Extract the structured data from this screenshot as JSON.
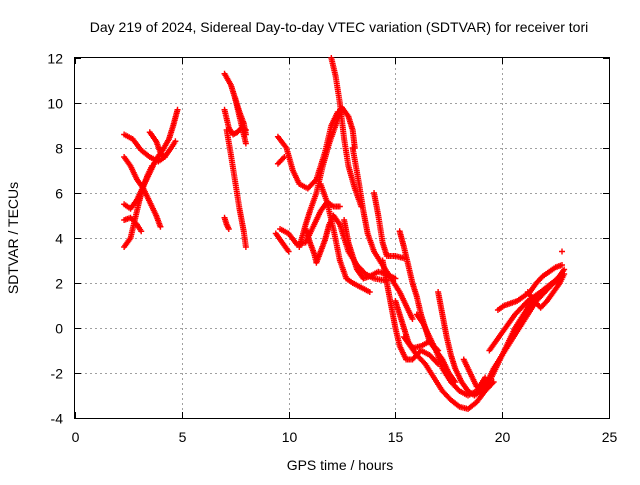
{
  "chart_data": {
    "type": "scatter",
    "title": "Day 219 of 2024, Sidereal Day-to-day VTEC variation (SDTVAR) for receiver tori",
    "xlabel": "GPS time / hours",
    "ylabel": "SDTVAR / TECUs",
    "xlim": [
      0,
      25
    ],
    "ylim": [
      -4,
      12
    ],
    "xticks": [
      "0",
      "5",
      "10",
      "15",
      "20",
      "25"
    ],
    "yticks": [
      "-4",
      "-2",
      "0",
      "2",
      "4",
      "6",
      "8",
      "10",
      "12"
    ],
    "grid": true,
    "marker": "+",
    "color": "#ff0000",
    "series": [
      {
        "points": [
          [
            2.3,
            8.6
          ],
          [
            2.7,
            8.4
          ],
          [
            3.1,
            7.9
          ],
          [
            3.5,
            7.6
          ],
          [
            3.9,
            7.4
          ],
          [
            4.2,
            7.6
          ],
          [
            4.5,
            8.0
          ],
          [
            4.7,
            8.3
          ]
        ]
      },
      {
        "points": [
          [
            2.3,
            7.6
          ],
          [
            2.6,
            7.2
          ],
          [
            2.9,
            6.6
          ],
          [
            3.2,
            6.2
          ],
          [
            3.5,
            5.6
          ],
          [
            3.8,
            5.0
          ],
          [
            4.0,
            4.5
          ]
        ]
      },
      {
        "points": [
          [
            2.3,
            5.5
          ],
          [
            2.6,
            5.3
          ],
          [
            2.9,
            5.7
          ],
          [
            3.2,
            6.3
          ],
          [
            3.5,
            6.9
          ],
          [
            3.8,
            7.5
          ],
          [
            4.1,
            7.9
          ],
          [
            4.4,
            8.4
          ],
          [
            4.6,
            9.0
          ],
          [
            4.8,
            9.7
          ]
        ]
      },
      {
        "points": [
          [
            2.3,
            4.8
          ],
          [
            2.6,
            4.9
          ],
          [
            2.9,
            4.6
          ],
          [
            3.1,
            4.3
          ]
        ]
      },
      {
        "points": [
          [
            2.3,
            3.6
          ],
          [
            2.6,
            4.0
          ],
          [
            2.8,
            4.8
          ],
          [
            3.0,
            5.6
          ],
          [
            3.2,
            6.3
          ],
          [
            3.4,
            6.8
          ],
          [
            3.6,
            7.2
          ]
        ]
      },
      {
        "points": [
          [
            3.5,
            8.7
          ],
          [
            3.8,
            8.3
          ],
          [
            4.0,
            7.8
          ],
          [
            4.2,
            7.6
          ]
        ]
      },
      {
        "points": [
          [
            7.0,
            11.3
          ],
          [
            7.3,
            10.8
          ],
          [
            7.5,
            10.2
          ],
          [
            7.7,
            9.6
          ],
          [
            7.9,
            9.1
          ],
          [
            8.0,
            8.6
          ]
        ]
      },
      {
        "points": [
          [
            7.0,
            9.7
          ],
          [
            7.2,
            8.9
          ],
          [
            7.4,
            8.6
          ],
          [
            7.6,
            8.7
          ],
          [
            7.8,
            8.9
          ],
          [
            8.0,
            8.8
          ]
        ]
      },
      {
        "points": [
          [
            7.1,
            8.8
          ],
          [
            7.3,
            7.7
          ],
          [
            7.5,
            6.5
          ],
          [
            7.7,
            5.3
          ],
          [
            7.9,
            4.3
          ],
          [
            8.0,
            3.6
          ]
        ]
      },
      {
        "points": [
          [
            7.0,
            4.9
          ],
          [
            7.1,
            4.6
          ],
          [
            7.2,
            4.4
          ]
        ]
      },
      {
        "points": [
          [
            7.5,
            10.2
          ],
          [
            7.7,
            9.4
          ],
          [
            7.9,
            8.6
          ],
          [
            8.0,
            8.2
          ]
        ]
      },
      {
        "points": [
          [
            9.5,
            8.5
          ],
          [
            9.9,
            8.0
          ],
          [
            10.2,
            7.0
          ],
          [
            10.5,
            6.4
          ],
          [
            10.9,
            6.2
          ],
          [
            11.3,
            6.6
          ],
          [
            11.7,
            7.8
          ],
          [
            12.0,
            9.0
          ],
          [
            12.3,
            9.6
          ]
        ]
      },
      {
        "points": [
          [
            9.6,
            4.4
          ],
          [
            10.0,
            4.2
          ],
          [
            10.4,
            3.7
          ],
          [
            10.8,
            3.8
          ],
          [
            11.2,
            4.6
          ],
          [
            11.5,
            5.2
          ],
          [
            11.8,
            5.6
          ],
          [
            12.1,
            5.4
          ],
          [
            12.4,
            5.4
          ]
        ]
      },
      {
        "points": [
          [
            9.5,
            7.3
          ],
          [
            9.8,
            7.6
          ]
        ]
      },
      {
        "points": [
          [
            9.4,
            4.2
          ],
          [
            9.7,
            3.8
          ],
          [
            10.0,
            3.4
          ]
        ]
      },
      {
        "points": [
          [
            10.5,
            3.6
          ],
          [
            10.8,
            4.6
          ],
          [
            11.0,
            5.2
          ],
          [
            11.3,
            6.0
          ],
          [
            11.6,
            7.2
          ],
          [
            11.9,
            8.2
          ],
          [
            12.2,
            9.0
          ],
          [
            12.5,
            9.8
          ],
          [
            12.8,
            9.4
          ],
          [
            13.0,
            8.8
          ],
          [
            13.1,
            8.0
          ]
        ]
      },
      {
        "points": [
          [
            12.0,
            12.0
          ],
          [
            12.2,
            11.2
          ],
          [
            12.4,
            10.0
          ],
          [
            12.6,
            8.4
          ],
          [
            12.8,
            7.2
          ],
          [
            13.1,
            6.2
          ],
          [
            13.4,
            5.4
          ]
        ]
      },
      {
        "points": [
          [
            10.8,
            4.4
          ],
          [
            11.0,
            3.8
          ],
          [
            11.2,
            3.3
          ],
          [
            11.3,
            2.9
          ],
          [
            11.5,
            3.4
          ],
          [
            11.7,
            3.9
          ],
          [
            11.9,
            4.6
          ],
          [
            12.1,
            5.0
          ],
          [
            12.4,
            4.6
          ],
          [
            12.8,
            3.4
          ],
          [
            13.2,
            2.8
          ],
          [
            13.6,
            2.4
          ],
          [
            14.0,
            2.2
          ],
          [
            14.6,
            2.1
          ]
        ]
      },
      {
        "points": [
          [
            11.5,
            6.4
          ],
          [
            11.8,
            5.6
          ],
          [
            12.1,
            4.4
          ],
          [
            12.4,
            3.0
          ],
          [
            12.7,
            2.2
          ],
          [
            13.0,
            2.0
          ],
          [
            13.4,
            1.8
          ],
          [
            13.8,
            1.6
          ]
        ]
      },
      {
        "points": [
          [
            12.6,
            4.8
          ],
          [
            12.8,
            3.8
          ],
          [
            13.0,
            3.2
          ],
          [
            13.2,
            2.6
          ],
          [
            13.5,
            2.2
          ],
          [
            13.8,
            2.3
          ],
          [
            14.2,
            2.5
          ],
          [
            14.6,
            2.4
          ],
          [
            15.0,
            2.2
          ]
        ]
      },
      {
        "points": [
          [
            13.0,
            8.0
          ],
          [
            13.3,
            6.4
          ],
          [
            13.5,
            5.2
          ],
          [
            13.7,
            4.2
          ],
          [
            14.0,
            3.4
          ],
          [
            14.4,
            2.8
          ],
          [
            14.8,
            2.2
          ],
          [
            15.2,
            1.6
          ],
          [
            15.5,
            1.0
          ],
          [
            15.8,
            0.4
          ]
        ]
      },
      {
        "points": [
          [
            14.0,
            6.0
          ],
          [
            14.2,
            5.0
          ],
          [
            14.4,
            3.8
          ],
          [
            14.6,
            3.2
          ],
          [
            15.0,
            3.2
          ],
          [
            15.4,
            3.1
          ]
        ]
      },
      {
        "points": [
          [
            14.4,
            3.0
          ],
          [
            14.6,
            2.0
          ],
          [
            14.8,
            1.0
          ],
          [
            15.0,
            0.0
          ],
          [
            15.2,
            -0.8
          ],
          [
            15.5,
            -1.4
          ],
          [
            15.8,
            -1.4
          ],
          [
            16.2,
            -1.0
          ],
          [
            16.6,
            -1.2
          ],
          [
            17.0,
            -1.6
          ]
        ]
      },
      {
        "points": [
          [
            15.2,
            4.3
          ],
          [
            15.4,
            3.6
          ],
          [
            15.6,
            2.8
          ],
          [
            15.8,
            2.0
          ],
          [
            16.0,
            1.4
          ],
          [
            16.2,
            0.6
          ],
          [
            16.4,
            0.0
          ],
          [
            16.6,
            -0.6
          ],
          [
            16.9,
            -1.0
          ],
          [
            17.2,
            -1.4
          ],
          [
            17.5,
            -2.0
          ],
          [
            17.8,
            -2.4
          ]
        ]
      },
      {
        "points": [
          [
            15.0,
            1.2
          ],
          [
            15.2,
            0.6
          ],
          [
            15.4,
            0.0
          ],
          [
            15.6,
            -0.6
          ],
          [
            15.8,
            -0.9
          ],
          [
            16.2,
            -0.8
          ],
          [
            16.6,
            -0.6
          ],
          [
            17.0,
            -1.0
          ]
        ]
      },
      {
        "points": [
          [
            15.4,
            -0.4
          ],
          [
            15.7,
            -0.8
          ],
          [
            16.0,
            -1.2
          ],
          [
            16.4,
            -1.6
          ],
          [
            16.8,
            -2.2
          ],
          [
            17.2,
            -2.8
          ],
          [
            17.6,
            -3.2
          ],
          [
            18.0,
            -3.5
          ],
          [
            18.4,
            -3.6
          ],
          [
            18.8,
            -3.3
          ],
          [
            19.2,
            -2.8
          ],
          [
            19.6,
            -2.4
          ]
        ]
      },
      {
        "points": [
          [
            16.0,
            0.6
          ],
          [
            16.3,
            0.2
          ],
          [
            16.6,
            -0.4
          ],
          [
            16.9,
            -1.0
          ],
          [
            17.2,
            -1.8
          ],
          [
            17.6,
            -2.4
          ],
          [
            18.0,
            -2.8
          ],
          [
            18.4,
            -3.0
          ],
          [
            18.8,
            -2.8
          ],
          [
            19.2,
            -2.2
          ]
        ]
      },
      {
        "points": [
          [
            17.0,
            1.6
          ],
          [
            17.2,
            0.6
          ],
          [
            17.4,
            -0.4
          ],
          [
            17.6,
            -1.2
          ],
          [
            17.8,
            -1.8
          ],
          [
            18.1,
            -2.4
          ],
          [
            18.4,
            -2.8
          ],
          [
            18.7,
            -3.0
          ],
          [
            19.0,
            -2.8
          ],
          [
            19.3,
            -2.4
          ],
          [
            19.6,
            -1.8
          ],
          [
            20.0,
            -1.2
          ],
          [
            20.4,
            -0.6
          ],
          [
            20.8,
            0.0
          ],
          [
            21.2,
            0.6
          ],
          [
            21.6,
            1.2
          ],
          [
            22.0,
            1.6
          ],
          [
            22.4,
            2.0
          ],
          [
            22.8,
            2.4
          ]
        ]
      },
      {
        "points": [
          [
            18.2,
            -1.4
          ],
          [
            18.5,
            -2.0
          ],
          [
            18.8,
            -2.6
          ],
          [
            19.1,
            -2.8
          ],
          [
            19.4,
            -2.4
          ],
          [
            19.8,
            -1.6
          ],
          [
            20.2,
            -0.8
          ],
          [
            20.6,
            0.0
          ],
          [
            21.0,
            0.6
          ],
          [
            21.4,
            1.2
          ],
          [
            21.8,
            1.6
          ],
          [
            22.2,
            1.9
          ],
          [
            22.6,
            2.2
          ],
          [
            22.9,
            2.6
          ]
        ]
      },
      {
        "points": [
          [
            19.4,
            -1.0
          ],
          [
            19.7,
            -0.6
          ],
          [
            20.0,
            -0.2
          ],
          [
            20.3,
            0.2
          ],
          [
            20.6,
            0.6
          ],
          [
            20.9,
            0.9
          ],
          [
            21.2,
            1.2
          ],
          [
            21.5,
            1.4
          ],
          [
            21.8,
            1.6
          ],
          [
            22.1,
            1.8
          ],
          [
            22.4,
            2.0
          ],
          [
            22.7,
            2.2
          ]
        ]
      },
      {
        "points": [
          [
            19.8,
            0.8
          ],
          [
            20.1,
            1.0
          ],
          [
            20.4,
            1.1
          ],
          [
            20.7,
            1.2
          ],
          [
            21.0,
            1.4
          ],
          [
            21.3,
            1.6
          ],
          [
            21.6,
            2.0
          ],
          [
            21.9,
            2.3
          ],
          [
            22.2,
            2.5
          ],
          [
            22.5,
            2.7
          ],
          [
            22.8,
            2.8
          ]
        ]
      },
      {
        "points": [
          [
            21.2,
            1.6
          ],
          [
            21.5,
            1.2
          ],
          [
            21.8,
            0.9
          ],
          [
            22.1,
            1.2
          ],
          [
            22.4,
            1.6
          ],
          [
            22.7,
            2.0
          ],
          [
            22.9,
            2.4
          ]
        ]
      },
      {
        "points": [
          [
            22.8,
            3.4
          ]
        ]
      }
    ]
  }
}
